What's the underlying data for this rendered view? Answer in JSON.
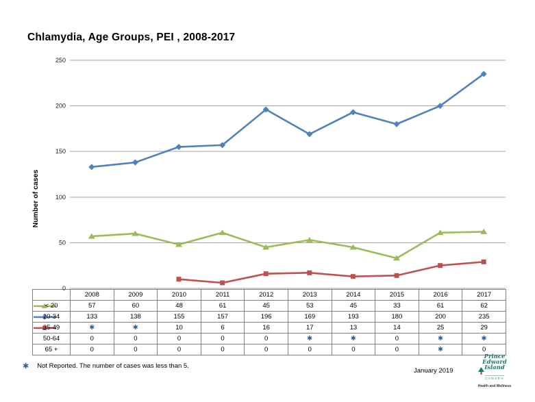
{
  "page": {
    "title": "Chlamydia, Age Groups, PEI , 2008-2017",
    "date_label": "January 2019",
    "footnote_marker": "✱",
    "footnote": "Not Reported. The number of cases was less than 5."
  },
  "logo": {
    "name": "Prince Edward Island",
    "country": "CANADA",
    "department": "Health and Wellness"
  },
  "chart_data": {
    "type": "line",
    "title": "Chlamydia, Age Groups, PEI , 2008-2017",
    "ylabel": "Number of cases",
    "xlabel": "",
    "categories": [
      "2008",
      "2009",
      "2010",
      "2011",
      "2012",
      "2013",
      "2014",
      "2015",
      "2016",
      "2017"
    ],
    "ylim": [
      0,
      250
    ],
    "yticks": [
      0,
      50,
      100,
      150,
      200,
      250
    ],
    "grid": true,
    "not_reported_symbol": "✱",
    "legend_position": "table-left-column",
    "series": [
      {
        "name": "< 20",
        "color": "#9bbb59",
        "marker": "triangle",
        "values": [
          57,
          60,
          48,
          61,
          45,
          53,
          45,
          33,
          61,
          62
        ],
        "display": [
          "57",
          "60",
          "48",
          "61",
          "45",
          "53",
          "45",
          "33",
          "61",
          "62"
        ]
      },
      {
        "name": "20-34",
        "color": "#4f81bd",
        "marker": "diamond",
        "values": [
          133,
          138,
          155,
          157,
          196,
          169,
          193,
          180,
          200,
          235
        ],
        "display": [
          "133",
          "138",
          "155",
          "157",
          "196",
          "169",
          "193",
          "180",
          "200",
          "235"
        ]
      },
      {
        "name": "35-49",
        "color": "#c0504d",
        "marker": "square",
        "values": [
          null,
          null,
          10,
          6,
          16,
          17,
          13,
          14,
          25,
          29
        ],
        "display": [
          "✱",
          "✱",
          "10",
          "6",
          "16",
          "17",
          "13",
          "14",
          "25",
          "29"
        ]
      },
      {
        "name": "50-64",
        "color": null,
        "marker": "none",
        "values": [
          0,
          0,
          0,
          0,
          0,
          null,
          null,
          0,
          null,
          null
        ],
        "display": [
          "0",
          "0",
          "0",
          "0",
          "0",
          "✱",
          "✱",
          "0",
          "✱",
          "✱"
        ]
      },
      {
        "name": "65 +",
        "color": null,
        "marker": "none",
        "values": [
          0,
          0,
          0,
          0,
          0,
          0,
          0,
          0,
          null,
          0
        ],
        "display": [
          "0",
          "0",
          "0",
          "0",
          "0",
          "0",
          "0",
          "0",
          "✱",
          "0"
        ]
      }
    ]
  }
}
